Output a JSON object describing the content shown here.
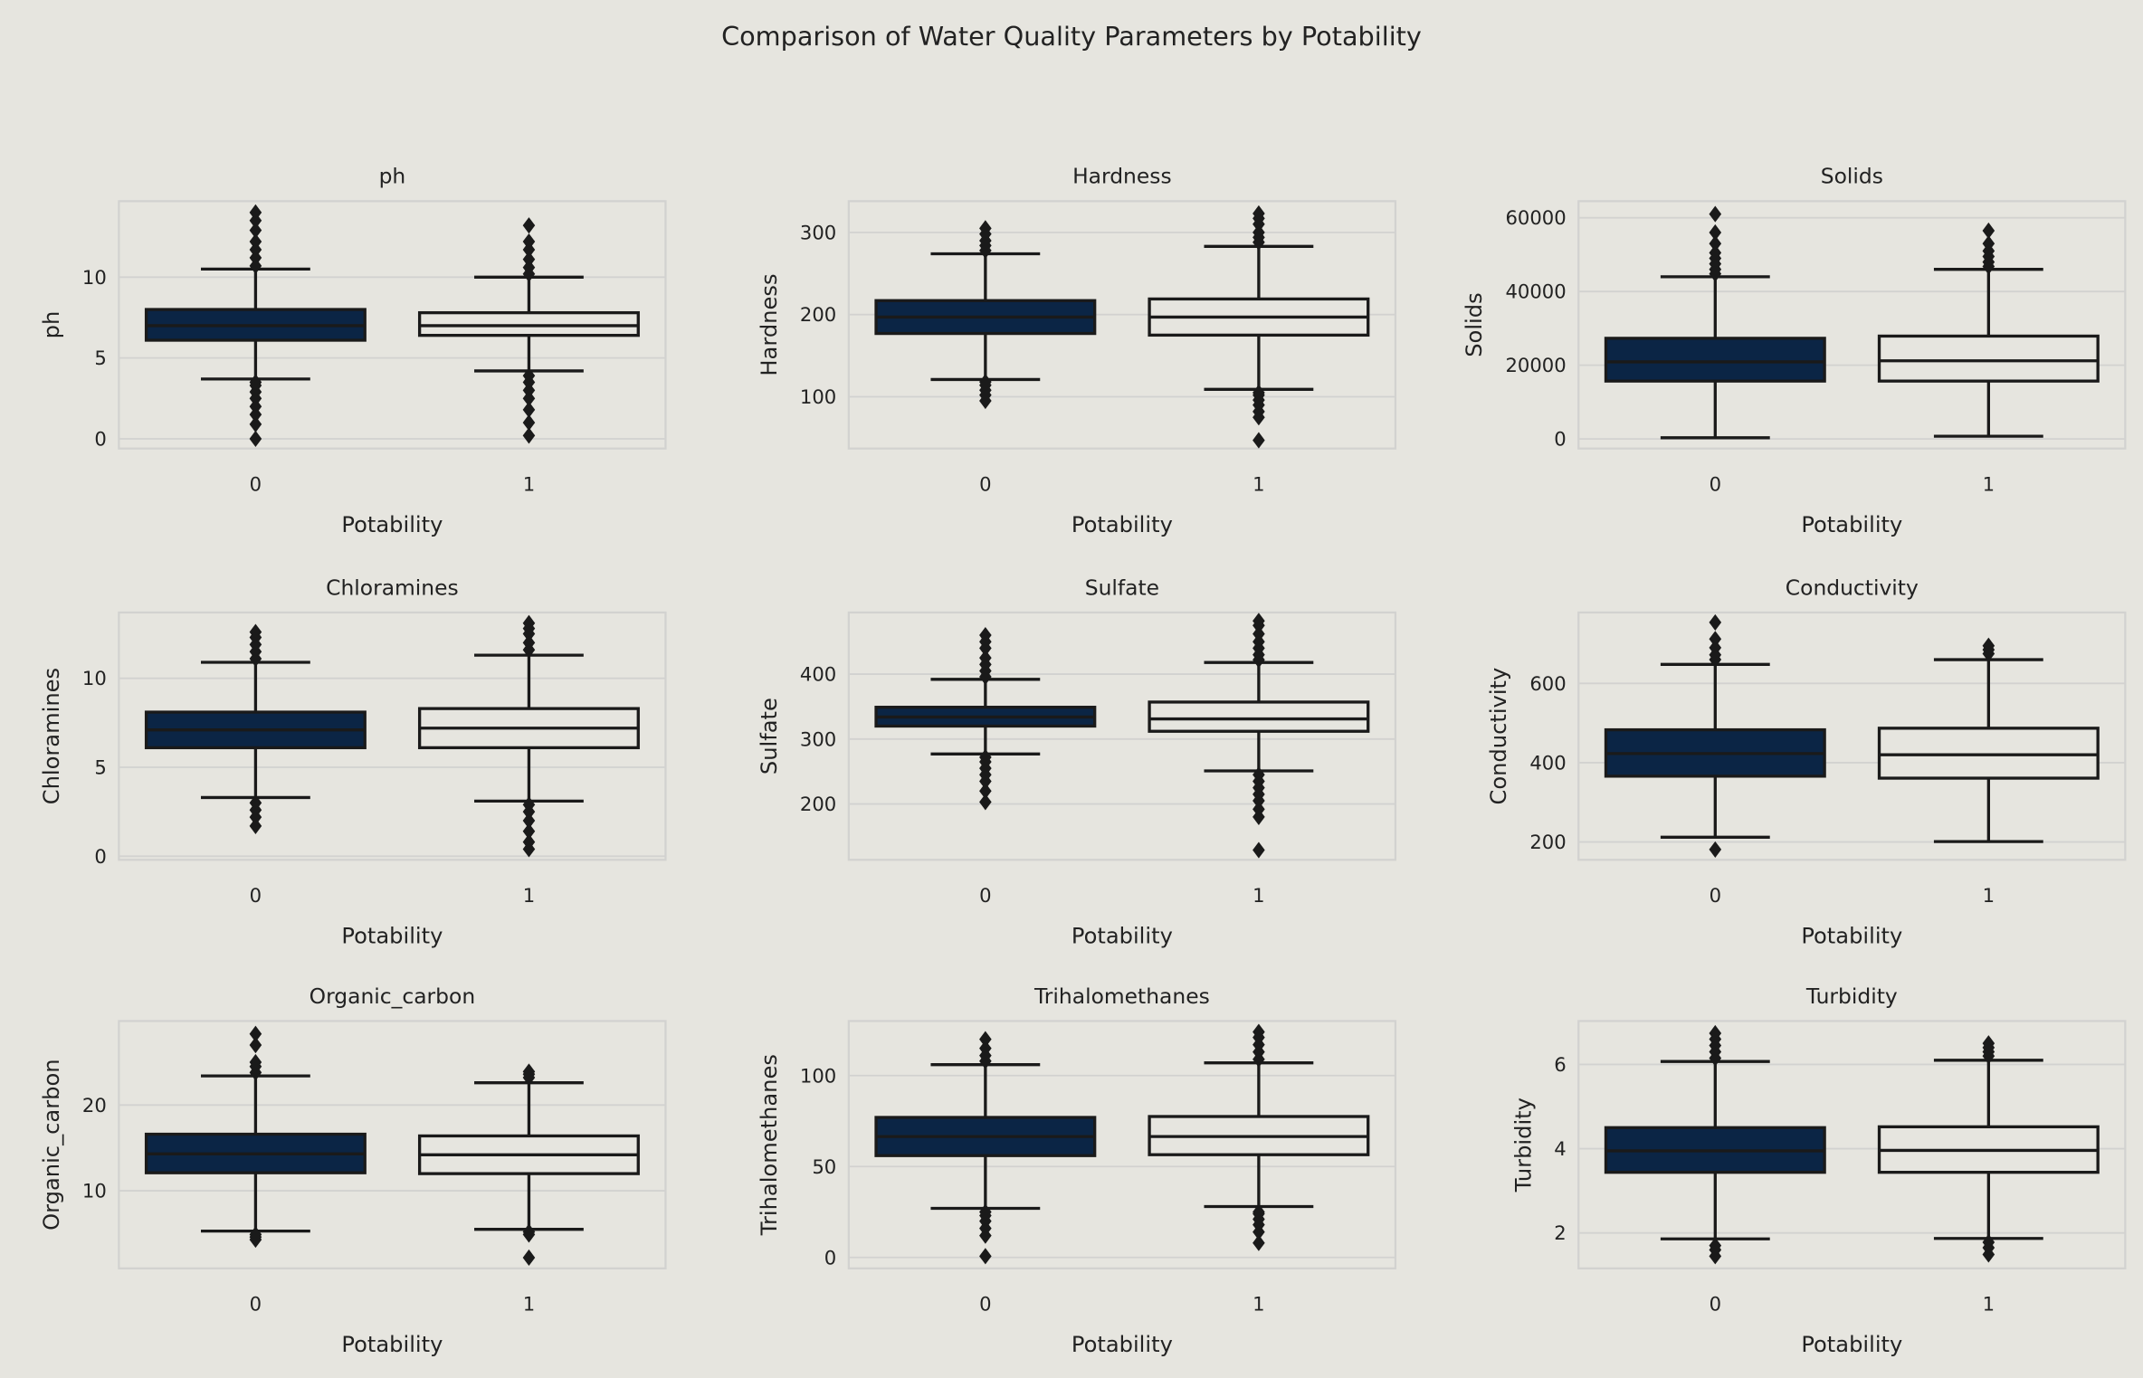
{
  "chart_data": {
    "type": "boxplot",
    "title": "Comparison of Water Quality Parameters by Potability",
    "xlabel": "Potability",
    "categories": [
      "0",
      "1"
    ],
    "colors": {
      "potability_0": "#0b2545",
      "potability_1": "#e6e5df",
      "background": "#e6e5df",
      "grid": "#d2d2d0",
      "lines": "#1a1a1a"
    },
    "panels": [
      {
        "title": "ph",
        "ylabel": "ph",
        "ylim": [
          -0.6,
          14.7
        ],
        "yticks": [
          0,
          5,
          10
        ],
        "boxes": [
          {
            "q1": 6.1,
            "median": 7.0,
            "q3": 8.0,
            "whislo": 3.7,
            "whishi": 10.5,
            "fliers": [
              0,
              0.9,
              1.5,
              2.0,
              2.5,
              2.9,
              3.3,
              3.5,
              10.7,
              11.2,
              11.7,
              12.2,
              12.9,
              13.5,
              14.0
            ]
          },
          {
            "q1": 6.4,
            "median": 7.0,
            "q3": 7.8,
            "whislo": 4.2,
            "whishi": 10.0,
            "fliers": [
              0.2,
              1.0,
              1.8,
              2.5,
              3.0,
              3.5,
              3.9,
              10.2,
              10.6,
              11.1,
              11.7,
              12.2,
              13.2
            ]
          }
        ]
      },
      {
        "title": "Hardness",
        "ylabel": "Hardness",
        "ylim": [
          37,
          338
        ],
        "yticks": [
          100,
          200,
          300
        ],
        "boxes": [
          {
            "q1": 177,
            "median": 197,
            "q3": 217,
            "whislo": 121,
            "whishi": 274,
            "fliers": [
              95,
              102,
              108,
              114,
              118,
              278,
              284,
              290,
              298,
              305
            ]
          },
          {
            "q1": 175,
            "median": 197,
            "q3": 219,
            "whislo": 109,
            "whishi": 283,
            "fliers": [
              47,
              75,
              82,
              90,
              96,
              102,
              105,
              288,
              294,
              300,
              310,
              317,
              323
            ]
          }
        ]
      },
      {
        "title": "Solids",
        "ylabel": "Solids",
        "ylim": [
          -2600,
          64500
        ],
        "yticks": [
          0,
          20000,
          40000,
          60000
        ],
        "boxes": [
          {
            "q1": 15700,
            "median": 20900,
            "q3": 27300,
            "whislo": 320,
            "whishi": 44000,
            "fliers": [
              44800,
              46000,
              47500,
              49000,
              50500,
              53000,
              56000,
              61000
            ]
          },
          {
            "q1": 15700,
            "median": 21200,
            "q3": 27900,
            "whislo": 730,
            "whishi": 46000,
            "fliers": [
              46800,
              48000,
              49500,
              51000,
              53000,
              56500
            ]
          }
        ]
      },
      {
        "title": "Chloramines",
        "ylabel": "Chloramines",
        "ylim": [
          -0.2,
          13.7
        ],
        "yticks": [
          0,
          5,
          10
        ],
        "boxes": [
          {
            "q1": 6.1,
            "median": 7.1,
            "q3": 8.1,
            "whislo": 3.3,
            "whishi": 10.9,
            "fliers": [
              1.7,
              2.2,
              2.6,
              3.0,
              11.1,
              11.5,
              11.9,
              12.3,
              12.6
            ]
          },
          {
            "q1": 6.1,
            "median": 7.2,
            "q3": 8.3,
            "whislo": 3.1,
            "whishi": 11.3,
            "fliers": [
              0.4,
              0.8,
              1.4,
              2.0,
              2.5,
              2.9,
              11.6,
              12.0,
              12.5,
              12.8,
              13.1
            ]
          }
        ]
      },
      {
        "title": "Sulfate",
        "ylabel": "Sulfate",
        "ylim": [
          114,
          495
        ],
        "yticks": [
          200,
          300,
          400
        ],
        "boxes": [
          {
            "q1": 320,
            "median": 334,
            "q3": 349,
            "whislo": 277,
            "whishi": 392,
            "fliers": [
              203,
              220,
              235,
              245,
              255,
              265,
              272,
              396,
              405,
              415,
              425,
              440,
              450,
              460
            ]
          },
          {
            "q1": 312,
            "median": 331,
            "q3": 357,
            "whislo": 251,
            "whishi": 418,
            "fliers": [
              129,
              180,
              192,
              205,
              215,
              225,
              235,
              245,
              422,
              430,
              440,
              450,
              462,
              475,
              482
            ]
          }
        ]
      },
      {
        "title": "Conductivity",
        "ylabel": "Conductivity",
        "ylim": [
          155,
          779
        ],
        "yticks": [
          200,
          400,
          600
        ],
        "boxes": [
          {
            "q1": 366,
            "median": 423,
            "q3": 483,
            "whislo": 212,
            "whishi": 648,
            "fliers": [
              181,
              660,
              672,
              690,
              712,
              754
            ]
          },
          {
            "q1": 361,
            "median": 420,
            "q3": 487,
            "whislo": 201,
            "whishi": 660,
            "fliers": [
              675,
              685,
              695
            ]
          }
        ]
      },
      {
        "title": "Organic_carbon",
        "ylabel": "Organic_carbon",
        "ylim": [
          0.95,
          29.8
        ],
        "yticks": [
          10,
          20
        ],
        "boxes": [
          {
            "q1": 12.1,
            "median": 14.3,
            "q3": 16.6,
            "whislo": 5.3,
            "whishi": 23.4,
            "fliers": [
              4.3,
              4.6,
              4.9,
              23.8,
              24.5,
              25.0,
              27.0,
              28.3
            ]
          },
          {
            "q1": 12.0,
            "median": 14.2,
            "q3": 16.4,
            "whislo": 5.5,
            "whishi": 22.6,
            "fliers": [
              2.2,
              4.9,
              5.2,
              23.2,
              23.6,
              23.9
            ]
          }
        ]
      },
      {
        "title": "Trihalomethanes",
        "ylabel": "Trihalomethanes",
        "ylim": [
          -6,
          130
        ],
        "yticks": [
          0,
          50,
          100
        ],
        "boxes": [
          {
            "q1": 56,
            "median": 66.5,
            "q3": 77,
            "whislo": 27,
            "whishi": 106,
            "fliers": [
              0.7,
              12,
              16,
              20,
              23,
              25,
              108,
              111,
              115,
              120
            ]
          },
          {
            "q1": 56.5,
            "median": 66.5,
            "q3": 77.5,
            "whislo": 28,
            "whishi": 107,
            "fliers": [
              8,
              14,
              18,
              21,
              24,
              25,
              109,
              113,
              117,
              121,
              124
            ]
          }
        ]
      },
      {
        "title": "Turbidity",
        "ylabel": "Turbidity",
        "ylim": [
          1.16,
          7.03
        ],
        "yticks": [
          2,
          4,
          6
        ],
        "boxes": [
          {
            "q1": 3.44,
            "median": 3.95,
            "q3": 4.5,
            "whislo": 1.86,
            "whishi": 6.07,
            "fliers": [
              1.45,
              1.6,
              1.7,
              6.15,
              6.3,
              6.45,
              6.6,
              6.74
            ]
          },
          {
            "q1": 3.44,
            "median": 3.96,
            "q3": 4.52,
            "whislo": 1.87,
            "whishi": 6.1,
            "fliers": [
              1.49,
              1.65,
              1.78,
              6.2,
              6.3,
              6.4,
              6.5
            ]
          }
        ]
      }
    ]
  }
}
